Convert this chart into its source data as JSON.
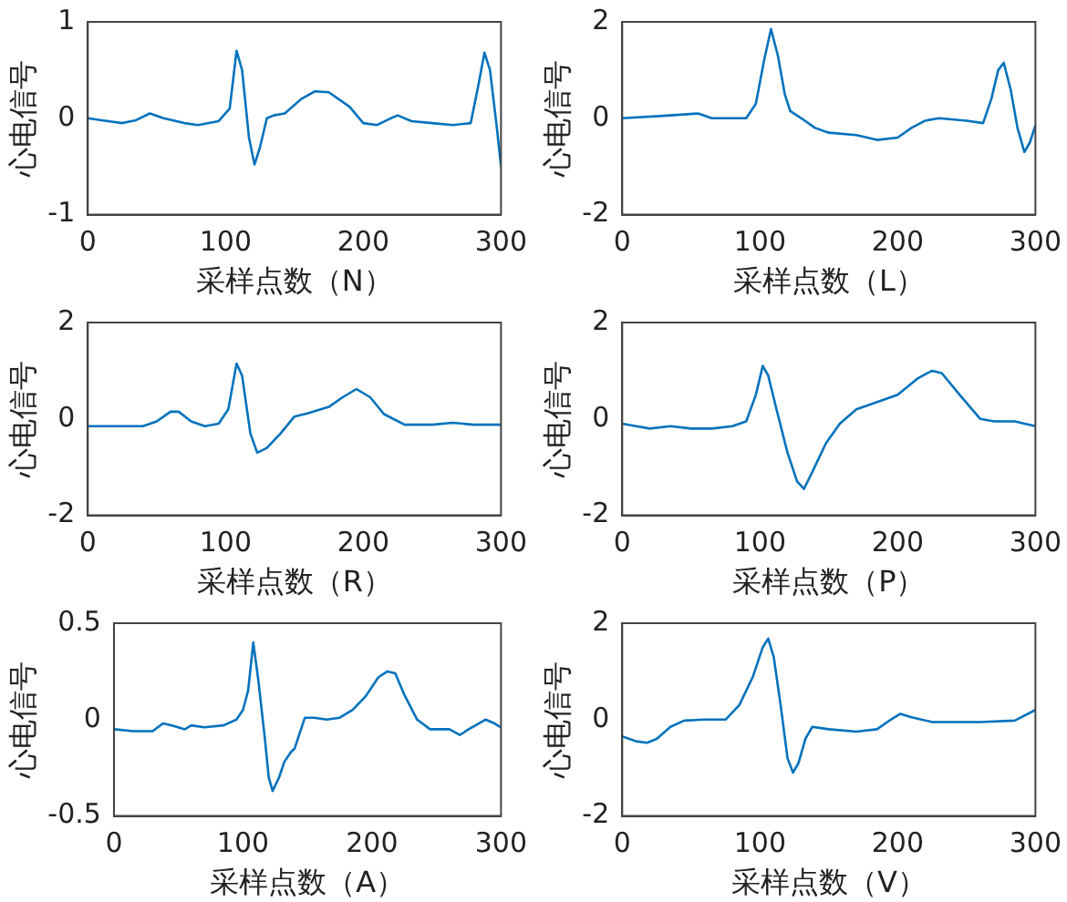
{
  "chart_data": [
    {
      "type": "line",
      "xlabel": "采样点数（N）",
      "ylabel": "心电信号",
      "xlim": [
        0,
        300
      ],
      "xticks": [
        0,
        100,
        200,
        300
      ],
      "ylim": [
        -1,
        1
      ],
      "yticks": [
        -1,
        0,
        1
      ],
      "x": [
        0,
        10,
        25,
        35,
        45,
        55,
        70,
        80,
        95,
        103,
        108,
        112,
        117,
        121,
        125,
        130,
        135,
        143,
        155,
        165,
        175,
        190,
        200,
        210,
        220,
        225,
        235,
        250,
        265,
        278,
        283,
        288,
        292,
        297,
        300
      ],
      "series": [
        {
          "color": "#0072bd",
          "values": [
            0,
            -0.02,
            -0.05,
            -0.02,
            0.05,
            0,
            -0.05,
            -0.07,
            -0.03,
            0.1,
            0.7,
            0.5,
            -0.2,
            -0.48,
            -0.3,
            0,
            0.03,
            0.05,
            0.2,
            0.28,
            0.27,
            0.12,
            -0.05,
            -0.07,
            0,
            0.03,
            -0.03,
            -0.05,
            -0.07,
            -0.05,
            0.3,
            0.68,
            0.5,
            -0.1,
            -0.5
          ]
        }
      ]
    },
    {
      "type": "line",
      "xlabel": "采样点数（L）",
      "ylabel": "心电信号",
      "xlim": [
        0,
        300
      ],
      "xticks": [
        0,
        100,
        200,
        300
      ],
      "ylim": [
        -2,
        2
      ],
      "yticks": [
        -2,
        0,
        2
      ],
      "x": [
        0,
        30,
        55,
        65,
        90,
        97,
        103,
        108,
        113,
        118,
        122,
        130,
        140,
        150,
        170,
        185,
        200,
        210,
        220,
        230,
        250,
        262,
        268,
        273,
        277,
        282,
        287,
        292,
        296,
        300
      ],
      "series": [
        {
          "color": "#0072bd",
          "values": [
            0,
            0.05,
            0.1,
            0,
            0,
            0.3,
            1.2,
            1.85,
            1.3,
            0.5,
            0.15,
            0,
            -0.2,
            -0.3,
            -0.35,
            -0.45,
            -0.4,
            -0.2,
            -0.05,
            0,
            -0.05,
            -0.1,
            0.4,
            1,
            1.15,
            0.6,
            -0.2,
            -0.7,
            -0.5,
            -0.15
          ]
        }
      ]
    },
    {
      "type": "line",
      "xlabel": "采样点数（R）",
      "ylabel": "心电信号",
      "xlim": [
        0,
        300
      ],
      "xticks": [
        0,
        100,
        200,
        300
      ],
      "ylim": [
        -2,
        2
      ],
      "yticks": [
        -2,
        0,
        2
      ],
      "x": [
        0,
        20,
        40,
        50,
        60,
        66,
        75,
        85,
        95,
        102,
        108,
        112,
        118,
        123,
        130,
        140,
        150,
        160,
        175,
        185,
        195,
        205,
        215,
        230,
        250,
        265,
        280,
        300
      ],
      "series": [
        {
          "color": "#0072bd",
          "values": [
            -0.15,
            -0.15,
            -0.15,
            -0.05,
            0.15,
            0.15,
            -0.05,
            -0.15,
            -0.1,
            0.2,
            1.15,
            0.9,
            -0.3,
            -0.7,
            -0.6,
            -0.3,
            0.05,
            0.12,
            0.25,
            0.45,
            0.62,
            0.45,
            0.1,
            -0.12,
            -0.12,
            -0.08,
            -0.12,
            -0.12
          ]
        }
      ]
    },
    {
      "type": "line",
      "xlabel": "采样点数（P）",
      "ylabel": "心电信号",
      "xlim": [
        0,
        300
      ],
      "xticks": [
        0,
        100,
        200,
        300
      ],
      "ylim": [
        -2,
        2
      ],
      "yticks": [
        -2,
        0,
        2
      ],
      "x": [
        0,
        10,
        20,
        35,
        50,
        65,
        80,
        90,
        97,
        102,
        106,
        112,
        120,
        127,
        132,
        138,
        148,
        158,
        170,
        180,
        200,
        215,
        225,
        232,
        245,
        260,
        270,
        285,
        300
      ],
      "series": [
        {
          "color": "#0072bd",
          "values": [
            -0.1,
            -0.15,
            -0.2,
            -0.15,
            -0.2,
            -0.2,
            -0.15,
            -0.05,
            0.5,
            1.1,
            0.9,
            0.2,
            -0.7,
            -1.3,
            -1.45,
            -1.1,
            -0.5,
            -0.1,
            0.2,
            0.3,
            0.5,
            0.85,
            1,
            0.95,
            0.5,
            0,
            -0.05,
            -0.05,
            -0.15
          ]
        }
      ]
    },
    {
      "type": "line",
      "xlabel": "采样点数（A）",
      "ylabel": "心电信号",
      "xlim": [
        0,
        300
      ],
      "xticks": [
        0,
        100,
        200,
        300
      ],
      "ylim": [
        -0.5,
        0.5
      ],
      "yticks": [
        -0.5,
        0,
        0.5
      ],
      "x": [
        0,
        15,
        30,
        38,
        45,
        55,
        60,
        70,
        85,
        95,
        100,
        104,
        108,
        112,
        117,
        120,
        123,
        128,
        132,
        137,
        140,
        145,
        148,
        155,
        165,
        175,
        185,
        195,
        205,
        212,
        218,
        225,
        235,
        245,
        260,
        268,
        275,
        288,
        295,
        300
      ],
      "series": [
        {
          "color": "#0072bd",
          "values": [
            -0.05,
            -0.06,
            -0.06,
            -0.02,
            -0.03,
            -0.05,
            -0.03,
            -0.04,
            -0.03,
            0,
            0.05,
            0.15,
            0.4,
            0.2,
            -0.1,
            -0.3,
            -0.37,
            -0.3,
            -0.22,
            -0.17,
            -0.15,
            -0.05,
            0.01,
            0.01,
            0,
            0.01,
            0.05,
            0.12,
            0.22,
            0.25,
            0.24,
            0.13,
            0,
            -0.05,
            -0.05,
            -0.08,
            -0.05,
            0,
            -0.02,
            -0.04
          ]
        }
      ]
    },
    {
      "type": "line",
      "xlabel": "采样点数（V）",
      "ylabel": "心电信号",
      "xlim": [
        0,
        300
      ],
      "xticks": [
        0,
        100,
        200,
        300
      ],
      "ylim": [
        -2,
        2
      ],
      "yticks": [
        -2,
        0,
        2
      ],
      "x": [
        0,
        10,
        18,
        25,
        35,
        45,
        60,
        75,
        85,
        95,
        102,
        106,
        110,
        115,
        120,
        124,
        128,
        133,
        138,
        150,
        170,
        185,
        195,
        202,
        210,
        225,
        260,
        285,
        300
      ],
      "series": [
        {
          "color": "#0072bd",
          "values": [
            -0.35,
            -0.45,
            -0.48,
            -0.4,
            -0.15,
            -0.02,
            0,
            0,
            0.3,
            0.9,
            1.5,
            1.68,
            1.3,
            0.3,
            -0.8,
            -1.1,
            -0.9,
            -0.4,
            -0.15,
            -0.2,
            -0.25,
            -0.2,
            0,
            0.12,
            0.05,
            -0.05,
            -0.05,
            -0.02,
            0.2
          ]
        }
      ]
    }
  ]
}
